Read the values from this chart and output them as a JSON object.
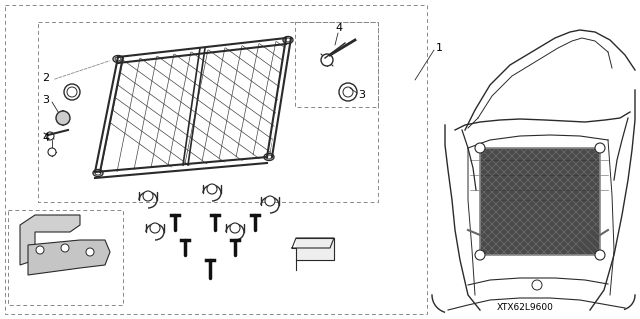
{
  "bg_color": "#ffffff",
  "line_color": "#2a2a2a",
  "dash_color": "#888888",
  "part_code": "XTX62L9600",
  "net_fill": "#b0b0b0",
  "car_fill": "#e0e0e0"
}
